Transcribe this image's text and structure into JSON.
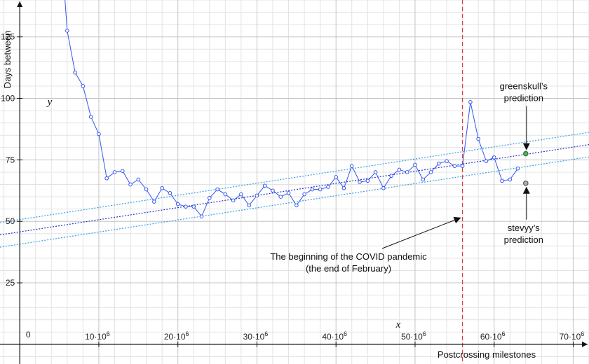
{
  "chart_data": {
    "type": "line",
    "xlabel": "Postcrossing milestones",
    "ylabel": "Days between",
    "x_var": "x",
    "y_var": "y",
    "xlim": [
      -2500000,
      72000000
    ],
    "ylim": [
      -8,
      140
    ],
    "grid": true,
    "x_ticks": [
      {
        "value": 10000000,
        "base": "10·10",
        "exp": "6"
      },
      {
        "value": 20000000,
        "base": "20·10",
        "exp": "6"
      },
      {
        "value": 30000000,
        "base": "30·10",
        "exp": "6"
      },
      {
        "value": 40000000,
        "base": "40·10",
        "exp": "6"
      },
      {
        "value": 50000000,
        "base": "50·10",
        "exp": "6"
      },
      {
        "value": 60000000,
        "base": "60·10",
        "exp": "6"
      },
      {
        "value": 70000000,
        "base": "70·10",
        "exp": "6"
      }
    ],
    "y_ticks": [
      25,
      50,
      75,
      100,
      125
    ],
    "origin_label": "0",
    "series": [
      {
        "points": [
          [
            5000000,
            172
          ],
          [
            6000000,
            127.5
          ],
          [
            7000000,
            110.5
          ],
          [
            8000000,
            105
          ],
          [
            9000000,
            92.5
          ],
          [
            10000000,
            85.5
          ],
          [
            11000000,
            67.5
          ],
          [
            12000000,
            70
          ],
          [
            13000000,
            70.5
          ],
          [
            14000000,
            65
          ],
          [
            15000000,
            67
          ],
          [
            16000000,
            63
          ],
          [
            17000000,
            58
          ],
          [
            18000000,
            63.5
          ],
          [
            19000000,
            61.5
          ],
          [
            20000000,
            57
          ],
          [
            21000000,
            56
          ],
          [
            22000000,
            56
          ],
          [
            23000000,
            52
          ],
          [
            24000000,
            59.5
          ],
          [
            25000000,
            63
          ],
          [
            26000000,
            61
          ],
          [
            27000000,
            58.5
          ],
          [
            28000000,
            61
          ],
          [
            29000000,
            56.5
          ],
          [
            30000000,
            60.5
          ],
          [
            31000000,
            64.5
          ],
          [
            32000000,
            62.5
          ],
          [
            33000000,
            60
          ],
          [
            34000000,
            61.5
          ],
          [
            35000000,
            56.5
          ],
          [
            36000000,
            61
          ],
          [
            37000000,
            63
          ],
          [
            38000000,
            63
          ],
          [
            39000000,
            64
          ],
          [
            40000000,
            68
          ],
          [
            41000000,
            63.5
          ],
          [
            42000000,
            72.5
          ],
          [
            43000000,
            66
          ],
          [
            44000000,
            66.5
          ],
          [
            45000000,
            70
          ],
          [
            46000000,
            63.5
          ],
          [
            47000000,
            68.5
          ],
          [
            48000000,
            71
          ],
          [
            49000000,
            70
          ],
          [
            50000000,
            73
          ],
          [
            51000000,
            67
          ],
          [
            52000000,
            70
          ],
          [
            53000000,
            73.5
          ],
          [
            54000000,
            74.5
          ],
          [
            55000000,
            72.5
          ],
          [
            56000000,
            72.5
          ],
          [
            57000000,
            98.5
          ],
          [
            58000000,
            83.5
          ],
          [
            59000000,
            74.5
          ],
          [
            60000000,
            76
          ],
          [
            61000000,
            66.5
          ],
          [
            62000000,
            67
          ],
          [
            63000000,
            71.5
          ]
        ],
        "color": "#3355ee"
      }
    ],
    "trend_lines": {
      "center": {
        "x": [
          -2500000,
          72000000
        ],
        "y": [
          44.5,
          81.2
        ],
        "color": "#2233cc"
      },
      "upper": {
        "x": [
          -2500000,
          72000000
        ],
        "y": [
          49.5,
          86.2
        ],
        "color": "#33a0e8"
      },
      "lower": {
        "x": [
          -2500000,
          72000000
        ],
        "y": [
          39.5,
          76.2
        ],
        "color": "#33a0e8"
      }
    },
    "vline": {
      "x": 56000000,
      "color": "#e23b3b"
    },
    "predictions": [
      {
        "label_lines": [
          "greenskull’s",
          "prediction"
        ],
        "x": 64000000,
        "y": 77.5,
        "color": "#2ecc40"
      },
      {
        "label_lines": [
          "stevyy’s",
          "prediction"
        ],
        "x": 64000000,
        "y": 65.5,
        "color": "#b0b0b0"
      }
    ],
    "annotations": [
      {
        "lines": [
          "The beginning of the COVID pandemic",
          "(the end of February)"
        ],
        "arrow_to": [
          56000000,
          52
        ]
      }
    ]
  }
}
